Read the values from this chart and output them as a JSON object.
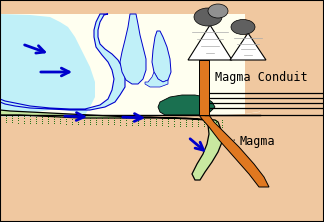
{
  "bg_color": "#f0c8a0",
  "ocean_color": "#c0f0f8",
  "ocean_dark": "#0000cc",
  "land_color": "#fffff0",
  "subducting_color": "#c8e8a0",
  "subducting_dot": "#006600",
  "magma_color": "#e07820",
  "sediment_color": "#1a7050",
  "arrow_color": "#0000cc",
  "gray_dark": "#606060",
  "gray_light": "#909090",
  "black": "#000000",
  "white": "#ffffff",
  "peach": "#f0c8a0",
  "label_conduit": "Magma Conduit",
  "label_magma": "Magma",
  "label_fs": 8.5
}
